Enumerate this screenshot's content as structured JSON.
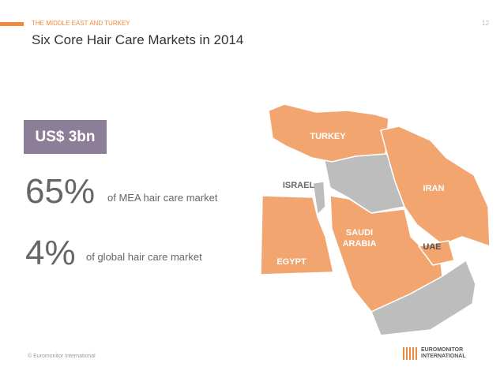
{
  "header": {
    "section": "THE MIDDLE EAST AND TURKEY",
    "page_number": "12",
    "title": "Six Core Hair Care Markets in 2014"
  },
  "badge": "US$ 3bn",
  "stats": [
    {
      "value": "65%",
      "text": "of MEA hair care market"
    },
    {
      "value": "4%",
      "text": "of global hair care market"
    }
  ],
  "map": {
    "labels": [
      "TURKEY",
      "ISRAEL",
      "IRAN",
      "SAUDI ARABIA",
      "UAE",
      "EGYPT"
    ]
  },
  "footer": {
    "copyright": "© Euromonitor International",
    "logo": [
      "EUROMONITOR",
      "INTERNATIONAL"
    ]
  }
}
